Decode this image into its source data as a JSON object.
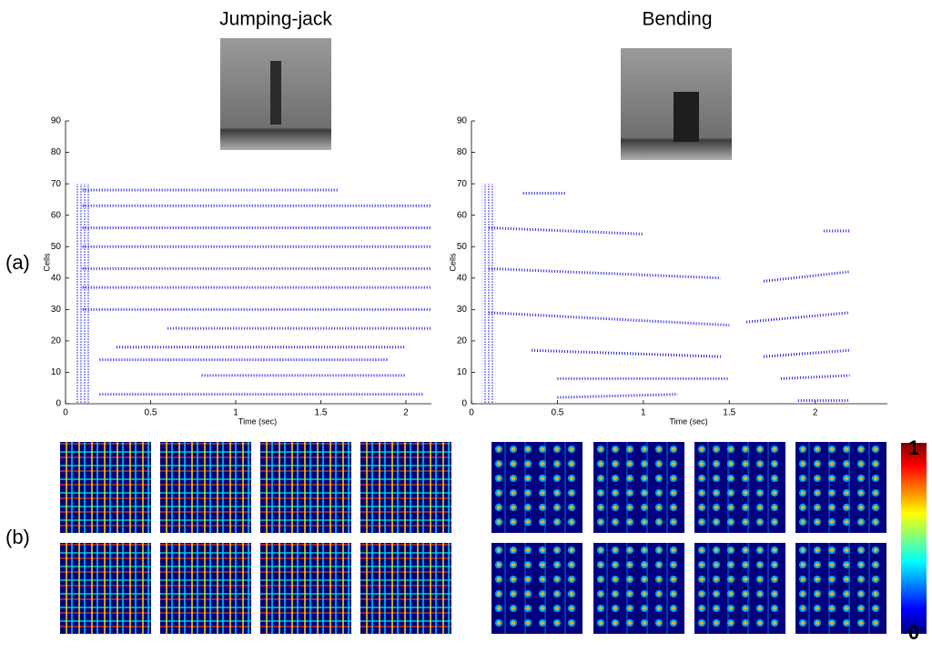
{
  "panel_labels": [
    "(a)",
    "(b)"
  ],
  "chart_data": [
    {
      "type": "raster",
      "title": "Jumping-jack",
      "xlabel": "Time (sec)",
      "ylabel": "Cells",
      "color": "#2222ee",
      "xlim": [
        0,
        2.15
      ],
      "ylim": [
        0,
        90
      ],
      "xticks": [
        0,
        0.5,
        1,
        1.5,
        2
      ],
      "yticks": [
        0,
        10,
        20,
        30,
        40,
        50,
        60,
        70,
        80,
        90
      ],
      "onset": [
        0.06,
        0.14,
        0,
        70
      ],
      "bands": [
        [
          0.1,
          68,
          1.6,
          68
        ],
        [
          0.1,
          63,
          2.2,
          63
        ],
        [
          0.1,
          56,
          2.2,
          56
        ],
        [
          0.1,
          50,
          2.2,
          50
        ],
        [
          0.1,
          43,
          2.2,
          43
        ],
        [
          0.1,
          37,
          2.2,
          37
        ],
        [
          0.1,
          30,
          2.2,
          30
        ],
        [
          0.6,
          24,
          2.2,
          24
        ],
        [
          0.3,
          18,
          2.0,
          18
        ],
        [
          0.2,
          14,
          1.9,
          14
        ],
        [
          0.8,
          9,
          2.0,
          9
        ],
        [
          0.2,
          3,
          2.1,
          3
        ]
      ]
    },
    {
      "type": "raster",
      "title": "Bending",
      "xlabel": "Time (sec)",
      "ylabel": "Cells",
      "color": "#2222ee",
      "xlim": [
        0,
        2.42
      ],
      "ylim": [
        0,
        90
      ],
      "xticks": [
        0,
        0.5,
        1,
        1.5,
        2
      ],
      "yticks": [
        0,
        10,
        20,
        30,
        40,
        50,
        60,
        70,
        80,
        90
      ],
      "onset": [
        0.06,
        0.14,
        0,
        70
      ],
      "bands": [
        [
          0.3,
          67,
          0.55,
          67
        ],
        [
          0.1,
          56,
          1.0,
          54
        ],
        [
          2.05,
          55,
          2.2,
          55
        ],
        [
          0.1,
          43,
          1.45,
          40
        ],
        [
          1.7,
          39,
          2.2,
          42
        ],
        [
          0.1,
          29,
          1.5,
          25
        ],
        [
          1.6,
          26,
          2.2,
          29
        ],
        [
          0.35,
          17,
          1.45,
          15
        ],
        [
          1.7,
          15,
          2.2,
          17
        ],
        [
          0.5,
          8,
          1.5,
          8
        ],
        [
          1.8,
          8,
          2.2,
          9
        ],
        [
          0.5,
          2,
          1.2,
          3
        ],
        [
          1.9,
          1,
          2.2,
          1
        ]
      ]
    }
  ],
  "colorbar": {
    "clim": [
      0,
      1
    ],
    "ticks": [
      0,
      1
    ]
  }
}
